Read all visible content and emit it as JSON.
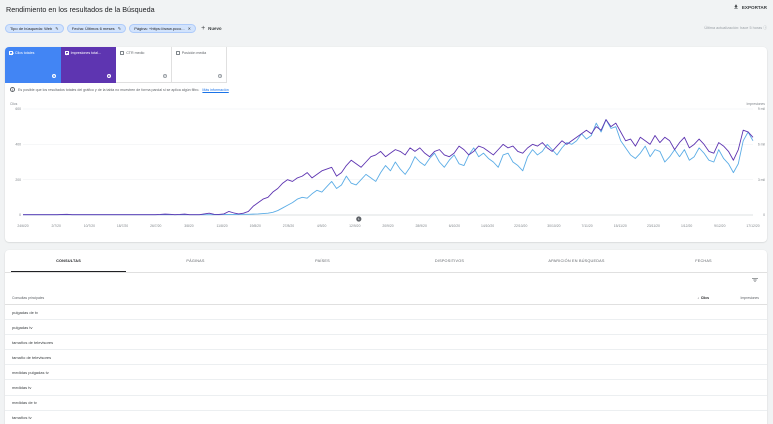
{
  "header": {
    "title": "Rendimiento en los resultados de la Búsqueda",
    "export_label": "EXPORTAR"
  },
  "filters": {
    "chips": [
      {
        "label": "Tipo de búsqueda: Web",
        "icon": "pencil-icon"
      },
      {
        "label": "Fecha: Últimos 6 meses",
        "icon": "pencil-icon"
      },
      {
        "label": "Página: +https://www.pcco...",
        "icon": "close-icon"
      }
    ],
    "new_label": "Nuevo",
    "last_update": "Última actualización: hace 5 horas"
  },
  "metrics": [
    {
      "label": "Clics totales",
      "active": true,
      "color": "#4285f4"
    },
    {
      "label": "Impresiones total...",
      "active": true,
      "color": "#5e35b1"
    },
    {
      "label": "CTR medio",
      "active": false
    },
    {
      "label": "Posición media",
      "active": false
    }
  ],
  "notice": {
    "text": "Es posible que los resultados totales del gráfico y de la tabla no muestren de forma parcial si se aplica algún filtro.",
    "link": "Más información"
  },
  "chart_data": {
    "type": "line",
    "x_tick_labels": [
      "24/6/20",
      "2/7/20",
      "10/7/20",
      "18/7/20",
      "26/7/20",
      "3/8/20",
      "11/8/20",
      "19/8/20",
      "27/8/20",
      "4/9/20",
      "12/9/20",
      "20/9/20",
      "28/9/20",
      "6/10/20",
      "14/10/20",
      "22/10/20",
      "30/10/20",
      "7/11/20",
      "15/11/20",
      "23/11/20",
      "1/12/20",
      "9/12/20",
      "17/12/20"
    ],
    "left_axis": {
      "label": "Clics",
      "ticks": [
        "600",
        "400",
        "200",
        "0"
      ],
      "range": [
        0,
        600
      ]
    },
    "right_axis": {
      "label": "Impresiones",
      "ticks": [
        "9 mil",
        "6 mil",
        "3 mil",
        "0"
      ],
      "range": [
        0,
        9000
      ]
    },
    "annotation_marker": "1",
    "series": [
      {
        "name": "Clics",
        "color": "#5cade6",
        "axis": "left",
        "values": [
          2,
          2,
          2,
          2,
          2,
          2,
          2,
          2,
          2,
          2,
          2,
          2,
          2,
          2,
          2,
          2,
          2,
          2,
          2,
          2,
          2,
          2,
          2,
          2,
          2,
          2,
          2,
          2,
          2,
          2,
          2,
          2,
          2,
          2,
          2,
          2,
          2,
          2,
          2,
          2,
          2,
          3,
          3,
          3,
          3,
          4,
          4,
          5,
          6,
          8,
          10,
          15,
          25,
          40,
          55,
          70,
          90,
          100,
          95,
          120,
          140,
          130,
          160,
          190,
          150,
          170,
          220,
          180,
          170,
          200,
          230,
          210,
          190,
          240,
          280,
          250,
          300,
          260,
          230,
          270,
          330,
          300,
          280,
          320,
          350,
          300,
          270,
          310,
          340,
          290,
          280,
          340,
          380,
          330,
          350,
          320,
          300,
          270,
          340,
          350,
          300,
          280,
          250,
          330,
          370,
          340,
          360,
          400,
          370,
          340,
          380,
          410,
          400,
          420,
          460,
          430,
          450,
          520,
          470,
          540,
          490,
          500,
          420,
          380,
          340,
          320,
          350,
          390,
          330,
          370,
          360,
          300,
          330,
          370,
          330,
          370,
          310,
          330,
          380,
          350,
          310,
          300,
          370,
          320,
          290,
          240,
          290,
          420,
          470,
          420
        ]
      },
      {
        "name": "Impresiones",
        "color": "#5e35b1",
        "axis": "right",
        "values": [
          30,
          30,
          30,
          30,
          30,
          30,
          30,
          30,
          45,
          60,
          30,
          30,
          30,
          30,
          30,
          30,
          30,
          30,
          30,
          30,
          30,
          30,
          30,
          30,
          30,
          30,
          30,
          30,
          45,
          75,
          60,
          30,
          45,
          75,
          30,
          30,
          30,
          90,
          150,
          60,
          45,
          90,
          300,
          180,
          90,
          150,
          300,
          750,
          1050,
          1350,
          1500,
          1950,
          2250,
          2700,
          3000,
          2850,
          3150,
          3300,
          3600,
          3150,
          3450,
          3750,
          3900,
          4050,
          3300,
          3600,
          4200,
          4650,
          4350,
          4050,
          4500,
          4950,
          5100,
          5400,
          4950,
          5250,
          5550,
          5400,
          5100,
          5700,
          5400,
          5700,
          5250,
          4950,
          5400,
          5550,
          5100,
          4950,
          5250,
          5850,
          5550,
          5100,
          5400,
          5850,
          5700,
          5400,
          5100,
          5550,
          6000,
          5700,
          5850,
          5400,
          5250,
          5700,
          6000,
          5850,
          6150,
          5700,
          5400,
          5850,
          6300,
          6000,
          6300,
          6600,
          6900,
          7200,
          6900,
          7500,
          7200,
          8100,
          7500,
          7800,
          7050,
          6300,
          6450,
          5850,
          6600,
          6300,
          6000,
          6750,
          6150,
          6600,
          6300,
          5550,
          6150,
          6600,
          5700,
          6000,
          6450,
          6000,
          5400,
          5250,
          6150,
          5850,
          5400,
          4650,
          5550,
          7200,
          7050,
          6600
        ]
      }
    ]
  },
  "tabs": {
    "items": [
      "CONSULTAS",
      "PÁGINAS",
      "PAÍSES",
      "DISPOSITIVOS",
      "APARICIÓN EN BÚSQUEDAS",
      "FECHAS"
    ],
    "active": 0
  },
  "table": {
    "col_query": "Consultas principales",
    "col_clicks": "Clics",
    "col_impr": "Impresiones",
    "rows": [
      "pulgadas de tv",
      "pulgadas tv",
      "tamaños de televisores",
      "tamaño de televisores",
      "medidas pulgadas tv",
      "medidas tv",
      "medidas de tv",
      "tamaños tv"
    ]
  }
}
